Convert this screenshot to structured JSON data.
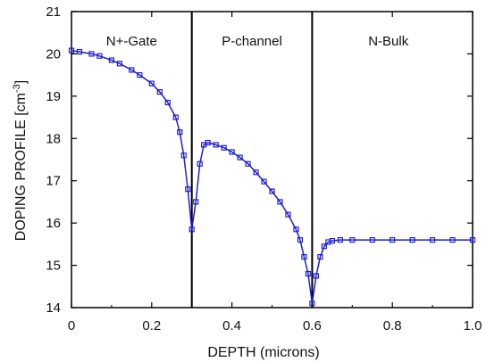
{
  "chart_data": {
    "type": "line",
    "xlabel": "DEPTH  (microns)",
    "ylabel_prefix": "DOPING PROFILE  [cm",
    "ylabel_exponent": "-3",
    "ylabel_suffix": "]",
    "xlim": [
      0,
      1.0
    ],
    "ylim": [
      14,
      21
    ],
    "x_ticks": [
      "0",
      "0.2",
      "0.4",
      "0.6",
      "0.8",
      "1.0"
    ],
    "y_ticks": [
      "14",
      "15",
      "16",
      "17",
      "18",
      "19",
      "20",
      "21"
    ],
    "grid": false,
    "regions": [
      {
        "label": "N+-Gate",
        "x_center": 0.15
      },
      {
        "label": "P-channel",
        "x_center": 0.45
      },
      {
        "label": "N-Bulk",
        "x_center": 0.79
      }
    ],
    "boundaries": [
      0.3,
      0.6
    ],
    "series_color": "#1f1fd0",
    "series": [
      {
        "x": [
          0.0,
          0.02,
          0.05,
          0.07,
          0.1,
          0.12,
          0.15,
          0.17,
          0.2,
          0.22,
          0.24,
          0.26,
          0.27,
          0.28,
          0.29,
          0.3,
          0.31,
          0.32,
          0.33,
          0.34,
          0.36,
          0.38,
          0.4,
          0.42,
          0.44,
          0.46,
          0.48,
          0.5,
          0.52,
          0.54,
          0.56,
          0.57,
          0.58,
          0.59,
          0.6,
          0.61,
          0.62,
          0.63,
          0.64,
          0.65,
          0.67,
          0.7,
          0.75,
          0.8,
          0.85,
          0.9,
          0.95,
          1.0
        ],
        "y": [
          20.08,
          20.05,
          20.0,
          19.95,
          19.85,
          19.77,
          19.62,
          19.5,
          19.3,
          19.1,
          18.85,
          18.5,
          18.15,
          17.6,
          16.8,
          15.85,
          16.5,
          17.4,
          17.85,
          17.9,
          17.85,
          17.78,
          17.68,
          17.55,
          17.4,
          17.2,
          16.98,
          16.75,
          16.5,
          16.2,
          15.85,
          15.6,
          15.2,
          14.8,
          14.1,
          14.75,
          15.2,
          15.45,
          15.55,
          15.58,
          15.6,
          15.6,
          15.6,
          15.6,
          15.6,
          15.6,
          15.6,
          15.6
        ]
      }
    ]
  }
}
